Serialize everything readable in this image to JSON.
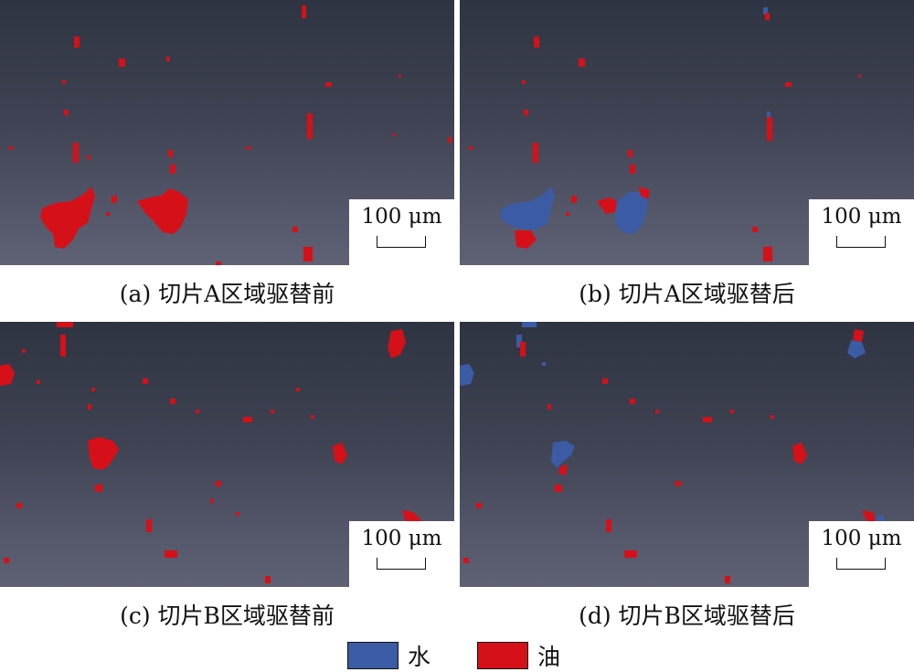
{
  "panels": [
    {
      "caption": "(a) 切片A区域驱替前",
      "scale": "100 μm"
    },
    {
      "caption": "(b) 切片A区域驱替后",
      "scale": "100 μm"
    },
    {
      "caption": "(c) 切片B区域驱替前",
      "scale": "100 μm"
    },
    {
      "caption": "(d) 切片B区域驱替后",
      "scale": "100 μm"
    }
  ],
  "legend": {
    "water": {
      "label": "水",
      "color": "#3b5ba5"
    },
    "oil": {
      "label": "油",
      "color": "#d61018"
    }
  }
}
